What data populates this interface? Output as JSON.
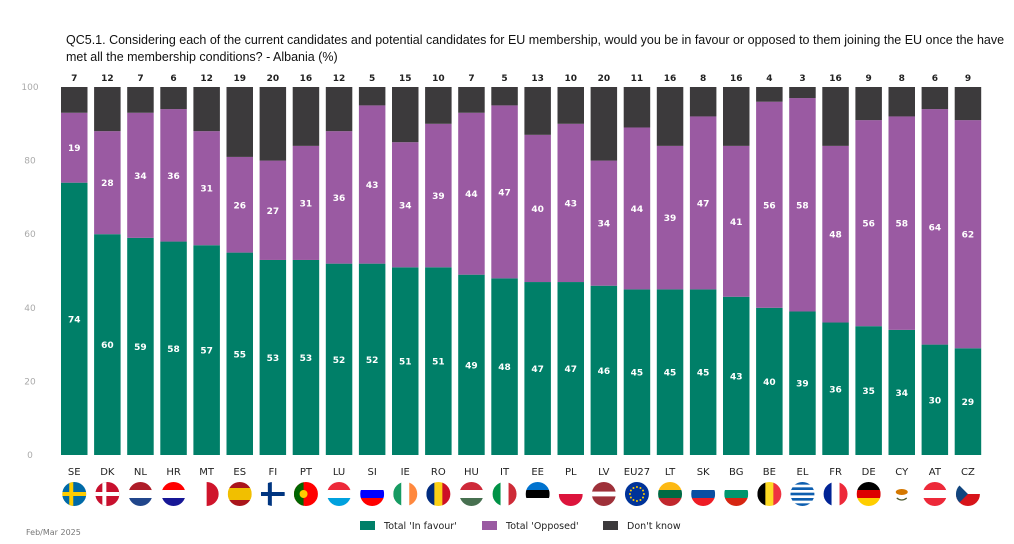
{
  "chart_data": {
    "type": "bar",
    "stacked": true,
    "title": "QC5.1. Considering each of the current candidates and potential candidates for EU membership, would you be in favour or opposed to them joining the EU once the have met all the membership conditions? - Albania (%)",
    "source_note": "Feb/Mar 2025",
    "ylim": [
      0,
      100
    ],
    "yticks": [
      0,
      20,
      40,
      60,
      80,
      100
    ],
    "grid": false,
    "legend_position": "bottom",
    "categories": [
      "SE",
      "DK",
      "NL",
      "HR",
      "MT",
      "ES",
      "FI",
      "PT",
      "LU",
      "SI",
      "IE",
      "RO",
      "HU",
      "IT",
      "EE",
      "PL",
      "LV",
      "EU27",
      "LT",
      "SK",
      "BG",
      "BE",
      "EL",
      "FR",
      "DE",
      "CY",
      "AT",
      "CZ"
    ],
    "series": [
      {
        "name": "Total 'In favour'",
        "color": "#007f68",
        "values": [
          74,
          60,
          59,
          58,
          57,
          55,
          53,
          53,
          52,
          52,
          51,
          51,
          49,
          48,
          47,
          47,
          46,
          45,
          45,
          45,
          43,
          40,
          39,
          36,
          35,
          34,
          30,
          29
        ]
      },
      {
        "name": "Total 'Opposed'",
        "color": "#9a5aa2",
        "values": [
          19,
          28,
          34,
          36,
          31,
          26,
          27,
          31,
          36,
          43,
          34,
          39,
          44,
          47,
          40,
          43,
          34,
          44,
          39,
          47,
          41,
          56,
          58,
          48,
          56,
          58,
          64,
          62
        ]
      },
      {
        "name": "Don't know",
        "color": "#3c3a3c",
        "values": [
          7,
          12,
          7,
          6,
          12,
          19,
          20,
          16,
          12,
          5,
          15,
          10,
          7,
          5,
          13,
          10,
          20,
          11,
          16,
          8,
          16,
          4,
          3,
          16,
          9,
          8,
          6,
          9
        ]
      }
    ],
    "flag_icons": [
      "sweden-flag-icon",
      "denmark-flag-icon",
      "netherlands-flag-icon",
      "croatia-flag-icon",
      "malta-flag-icon",
      "spain-flag-icon",
      "finland-flag-icon",
      "portugal-flag-icon",
      "luxembourg-flag-icon",
      "slovenia-flag-icon",
      "ireland-flag-icon",
      "romania-flag-icon",
      "hungary-flag-icon",
      "italy-flag-icon",
      "estonia-flag-icon",
      "poland-flag-icon",
      "latvia-flag-icon",
      "eu-flag-icon",
      "lithuania-flag-icon",
      "slovakia-flag-icon",
      "bulgaria-flag-icon",
      "belgium-flag-icon",
      "greece-flag-icon",
      "france-flag-icon",
      "germany-flag-icon",
      "cyprus-flag-icon",
      "austria-flag-icon",
      "czechia-flag-icon"
    ]
  }
}
